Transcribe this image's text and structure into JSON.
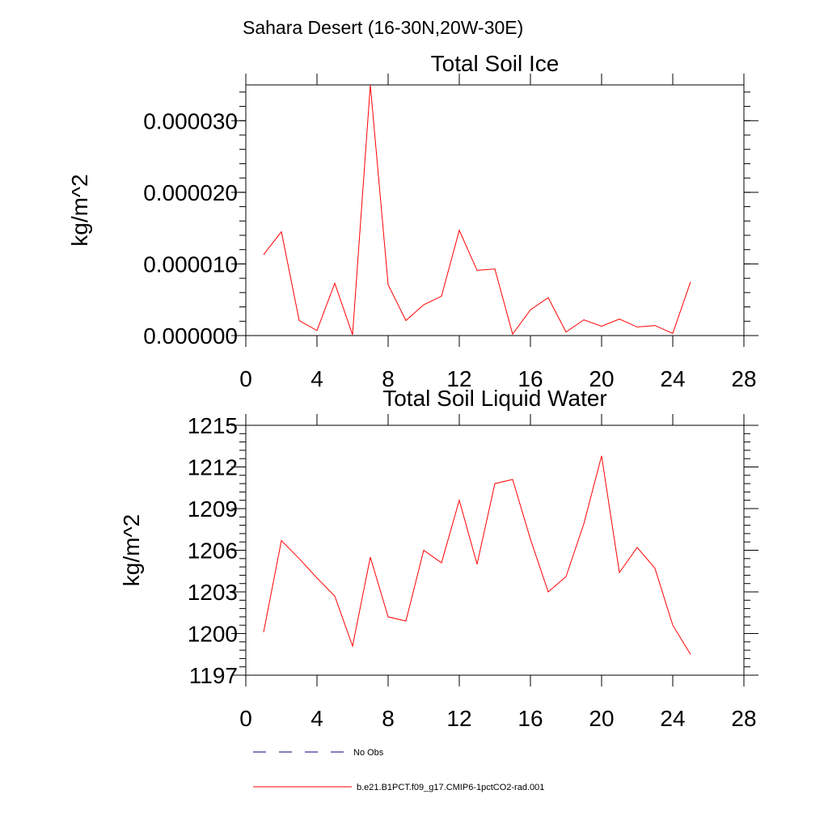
{
  "figure_title": "Sahara Desert (16-30N,20W-30E)",
  "colors": {
    "model": "#ff0000",
    "obs": "#000080",
    "axis": "#000000",
    "background": "#ffffff"
  },
  "legend": {
    "obs_label": "No Obs",
    "model_label": "b.e21.B1PCT.f09_g17.CMIP6-1pctCO2-rad.001"
  },
  "chart_data": [
    {
      "type": "line",
      "title": "Total Soil Ice",
      "xlabel": "",
      "ylabel": "kg/m^2",
      "xlim": [
        0,
        28
      ],
      "ylim": [
        0,
        3.5e-05
      ],
      "xticks": [
        "0",
        "4",
        "8",
        "12",
        "16",
        "20",
        "24",
        "28"
      ],
      "xtick_values": [
        0,
        4,
        8,
        12,
        16,
        20,
        24,
        28
      ],
      "yticks": [
        "0.000000",
        "0.000010",
        "0.000020",
        "0.000030"
      ],
      "ytick_values": [
        0,
        1e-05,
        2e-05,
        3e-05
      ],
      "grid": false,
      "series": [
        {
          "name": "b.e21.B1PCT.f09_g17.CMIP6-1pctCO2-rad.001",
          "x": [
            1,
            2,
            3,
            4,
            5,
            6,
            7,
            8,
            9,
            10,
            11,
            12,
            13,
            14,
            15,
            16,
            17,
            18,
            19,
            20,
            21,
            22,
            23,
            24,
            25
          ],
          "values": [
            1.13e-05,
            1.45e-05,
            2.1e-06,
            7e-07,
            7.3e-06,
            1e-07,
            3.5e-05,
            7.1e-06,
            2.1e-06,
            4.3e-06,
            5.5e-06,
            1.47e-05,
            9.1e-06,
            9.3e-06,
            2e-07,
            3.6e-06,
            5.3e-06,
            5e-07,
            2.2e-06,
            1.3e-06,
            2.3e-06,
            1.2e-06,
            1.4e-06,
            3e-07,
            7.5e-06
          ]
        }
      ]
    },
    {
      "type": "line",
      "title": "Total Soil Liquid Water",
      "xlabel": "",
      "ylabel": "kg/m^2",
      "xlim": [
        0,
        28
      ],
      "ylim": [
        1197,
        1215
      ],
      "xticks": [
        "0",
        "4",
        "8",
        "12",
        "16",
        "20",
        "24",
        "28"
      ],
      "xtick_values": [
        0,
        4,
        8,
        12,
        16,
        20,
        24,
        28
      ],
      "yticks": [
        "1197",
        "1200",
        "1203",
        "1206",
        "1209",
        "1212",
        "1215"
      ],
      "ytick_values": [
        1197,
        1200,
        1203,
        1206,
        1209,
        1212,
        1215
      ],
      "grid": false,
      "series": [
        {
          "name": "b.e21.B1PCT.f09_g17.CMIP6-1pctCO2-rad.001",
          "x": [
            1,
            2,
            3,
            4,
            5,
            6,
            7,
            8,
            9,
            10,
            11,
            12,
            13,
            14,
            15,
            16,
            17,
            18,
            19,
            20,
            21,
            22,
            23,
            24,
            25
          ],
          "values": [
            1200.1,
            1206.7,
            1205.4,
            1204.0,
            1202.7,
            1199.1,
            1205.5,
            1201.2,
            1200.9,
            1206.0,
            1205.1,
            1209.6,
            1205.0,
            1210.8,
            1211.1,
            1206.8,
            1203.0,
            1204.1,
            1207.9,
            1212.8,
            1204.4,
            1206.2,
            1204.7,
            1200.6,
            1198.5
          ]
        }
      ]
    }
  ]
}
